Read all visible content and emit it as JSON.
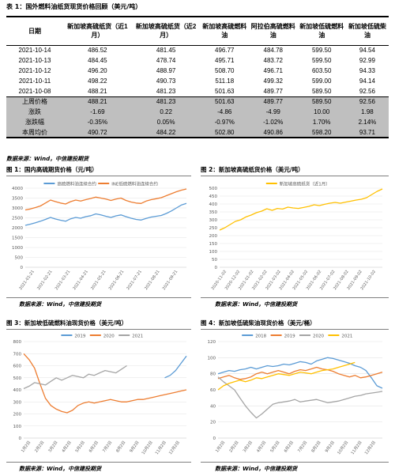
{
  "table": {
    "title": "表 1：国外燃料油纸货现货价格回顾（美元/吨）",
    "headers": [
      "日期",
      "新加坡高硫纸货（近1月）",
      "新加坡高硫纸货（近2月）",
      "新加坡高硫燃料油",
      "阿拉伯高硫燃料油",
      "新加坡低硫燃料油",
      "新加坡低硫柴油"
    ],
    "rows": [
      [
        "2021-10-14",
        "486.52",
        "481.45",
        "496.77",
        "484.78",
        "599.50",
        "94.54"
      ],
      [
        "2021-10-13",
        "484.45",
        "478.74",
        "495.71",
        "483.72",
        "599.50",
        "92.99"
      ],
      [
        "2021-10-12",
        "496.20",
        "488.97",
        "508.70",
        "496.71",
        "603.50",
        "94.33"
      ],
      [
        "2021-10-11",
        "498.22",
        "490.73",
        "511.18",
        "499.32",
        "599.00",
        "94.14"
      ],
      [
        "2021-10-08",
        "488.21",
        "481.23",
        "501.63",
        "489.77",
        "589.50",
        "92.56"
      ]
    ],
    "summary": [
      [
        "上周价格",
        "488.21",
        "481.23",
        "501.63",
        "489.77",
        "589.50",
        "92.56"
      ],
      [
        "涨跌",
        "-1.69",
        "0.22",
        "-4.86",
        "-4.99",
        "10.00",
        "1.98"
      ],
      [
        "涨跌幅",
        "-0.35%",
        "0.05%",
        "-0.97%",
        "-1.02%",
        "1.70%",
        "2.14%"
      ],
      [
        "本周均价",
        "490.72",
        "484.22",
        "502.80",
        "490.86",
        "598.20",
        "93.71"
      ]
    ]
  },
  "source": "数据来源：Wind，中信建投期货",
  "figures": {
    "f1_title": "图 1：国内高硫期货价格（元/吨）",
    "f2_title": "图 2：新加坡高硫纸货价格（美元/吨）",
    "f3_title": "图 3：新加坡低硫燃料油现货价格（美元/吨）",
    "f4_title": "图 4：新加坡低硫柴油现货价格（美元/桶）"
  },
  "chart_data": [
    {
      "type": "line",
      "id": "f1",
      "ylim": [
        0,
        4000
      ],
      "yticks": [
        0,
        500,
        1000,
        1500,
        2000,
        2500,
        3000,
        3500,
        4000
      ],
      "x_labels": [
        "2021-01-21",
        "2021-02-21",
        "2021-03-21",
        "2021-04-21",
        "2021-05-21",
        "2021-06-21",
        "2021-07-21",
        "2021-08-21",
        "2021-09-21"
      ],
      "series": [
        {
          "name": "高硫燃料油连续合约",
          "color": "#5b9bd5",
          "values": [
            2120,
            2180,
            2250,
            2330,
            2420,
            2520,
            2440,
            2380,
            2330,
            2450,
            2520,
            2480,
            2560,
            2610,
            2700,
            2650,
            2580,
            2520,
            2600,
            2650,
            2560,
            2480,
            2420,
            2390,
            2470,
            2540,
            2580,
            2620,
            2720,
            2850,
            3000,
            3150,
            3230
          ]
        },
        {
          "name": "INE低硫燃料油连续合约",
          "color": "#ed7d31",
          "values": [
            2900,
            2950,
            3020,
            3100,
            3250,
            3400,
            3320,
            3250,
            3200,
            3320,
            3400,
            3350,
            3420,
            3480,
            3550,
            3500,
            3450,
            3380,
            3450,
            3500,
            3380,
            3300,
            3250,
            3230,
            3350,
            3420,
            3470,
            3520,
            3620,
            3720,
            3820,
            3900,
            3960
          ]
        }
      ]
    },
    {
      "type": "line",
      "id": "f2",
      "ylim": [
        0,
        500
      ],
      "yticks": [
        0,
        50,
        100,
        150,
        200,
        250,
        300,
        350,
        400,
        450,
        500
      ],
      "x_labels": [
        "2020-11-02",
        "2020-12-02",
        "2021-01-02",
        "2021-02-02",
        "2021-03-02",
        "2021-04-02",
        "2021-05-02",
        "2021-06-02",
        "2021-07-02",
        "2021-08-02",
        "2021-09-02",
        "2021-10-02"
      ],
      "series": [
        {
          "name": "新加坡高硫纸货（近1月）",
          "color": "#ffc000",
          "values": [
            235,
            250,
            270,
            290,
            300,
            318,
            330,
            345,
            355,
            370,
            360,
            372,
            368,
            380,
            375,
            372,
            378,
            385,
            395,
            390,
            398,
            405,
            410,
            405,
            412,
            418,
            425,
            430,
            440,
            460,
            480,
            495
          ]
        }
      ]
    },
    {
      "type": "line",
      "id": "f3",
      "ylim": [
        0,
        800
      ],
      "yticks": [
        0,
        100,
        200,
        300,
        400,
        500,
        600,
        700,
        800
      ],
      "x_labels": [
        "1月2日",
        "2月2日",
        "3月2日",
        "4月2日",
        "5月2日",
        "6月2日",
        "7月2日",
        "8月2日",
        "9月2日",
        "10月2日",
        "11月2日",
        "12月2日"
      ],
      "series": [
        {
          "name": "2019",
          "color": "#5b9bd5",
          "values": [
            null,
            null,
            null,
            null,
            null,
            null,
            null,
            null,
            null,
            null,
            null,
            null,
            null,
            null,
            null,
            null,
            null,
            null,
            null,
            null,
            null,
            null,
            null,
            null,
            null,
            null,
            500,
            520,
            560,
            620,
            680
          ]
        },
        {
          "name": "2020",
          "color": "#ed7d31",
          "values": [
            700,
            650,
            580,
            450,
            330,
            270,
            240,
            220,
            210,
            230,
            270,
            290,
            300,
            290,
            300,
            310,
            320,
            310,
            300,
            300,
            310,
            320,
            320,
            330,
            340,
            350,
            360,
            370,
            380,
            390,
            400
          ]
        },
        {
          "name": "2021",
          "color": "#a5a5a5",
          "values": [
            410,
            430,
            460,
            450,
            440,
            470,
            500,
            480,
            500,
            520,
            510,
            500,
            530,
            520,
            540,
            560,
            550,
            540,
            570,
            600,
            null,
            null,
            null,
            null,
            null,
            null,
            null,
            null,
            null,
            null,
            null
          ]
        }
      ]
    },
    {
      "type": "line",
      "id": "f4",
      "ylim": [
        0,
        120
      ],
      "yticks": [
        0,
        20,
        40,
        60,
        80,
        100,
        120
      ],
      "x_labels": [
        "1月2日",
        "2月2日",
        "3月2日",
        "4月2日",
        "5月2日",
        "6月2日",
        "7月2日",
        "8月2日",
        "9月2日",
        "10月2日",
        "11月2日",
        "12月2日"
      ],
      "series": [
        {
          "name": "2018",
          "color": "#5b9bd5",
          "values": [
            80,
            82,
            84,
            83,
            85,
            86,
            88,
            86,
            88,
            90,
            89,
            90,
            92,
            91,
            93,
            95,
            94,
            92,
            96,
            98,
            100,
            99,
            97,
            95,
            93,
            90,
            88,
            84,
            75,
            65,
            62
          ]
        },
        {
          "name": "2019",
          "color": "#ed7d31",
          "values": [
            74,
            76,
            78,
            75,
            73,
            74,
            76,
            80,
            82,
            80,
            82,
            84,
            82,
            80,
            83,
            85,
            84,
            86,
            88,
            86,
            85,
            83,
            80,
            78,
            76,
            78,
            75,
            76,
            78,
            80,
            82
          ]
        },
        {
          "name": "2020",
          "color": "#a5a5a5",
          "values": [
            76,
            70,
            65,
            60,
            50,
            40,
            32,
            25,
            30,
            36,
            42,
            44,
            45,
            46,
            48,
            45,
            46,
            47,
            48,
            46,
            44,
            45,
            46,
            48,
            50,
            52,
            53,
            55,
            56,
            57,
            58
          ]
        },
        {
          "name": "2021",
          "color": "#ffc000",
          "values": [
            60,
            65,
            68,
            70,
            72,
            70,
            72,
            75,
            74,
            76,
            78,
            80,
            79,
            78,
            80,
            82,
            81,
            80,
            82,
            84,
            85,
            86,
            88,
            90,
            92,
            94,
            null,
            null,
            null,
            null,
            null
          ]
        }
      ]
    }
  ]
}
